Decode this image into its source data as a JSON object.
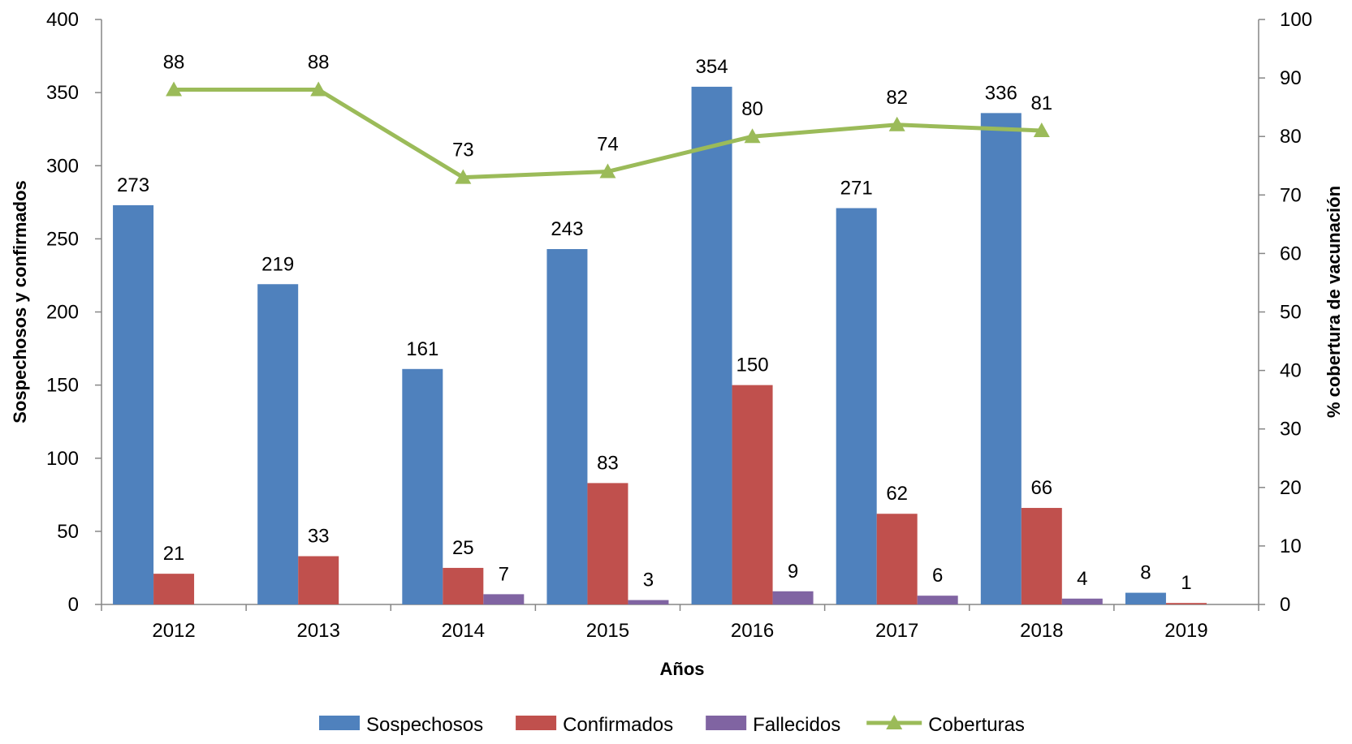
{
  "chart_data": {
    "type": "bar",
    "categories": [
      "2012",
      "2013",
      "2014",
      "2015",
      "2016",
      "2017",
      "2018",
      "2019"
    ],
    "series": [
      {
        "name": "Sospechosos",
        "type": "bar",
        "axis": "left",
        "color": "#4F81BD",
        "values": [
          273,
          219,
          161,
          243,
          354,
          271,
          336,
          8
        ],
        "data_labels": [
          "273",
          "219",
          "161",
          "243",
          "354",
          "271",
          "336",
          "8"
        ]
      },
      {
        "name": "Confirmados",
        "type": "bar",
        "axis": "left",
        "color": "#C0504D",
        "values": [
          21,
          33,
          25,
          83,
          150,
          62,
          66,
          1
        ],
        "data_labels": [
          "21",
          "33",
          "25",
          "83",
          "150",
          "62",
          "66",
          "1"
        ]
      },
      {
        "name": "Fallecidos",
        "type": "bar",
        "axis": "left",
        "color": "#8064A2",
        "values": [
          null,
          null,
          7,
          3,
          9,
          6,
          4,
          null
        ],
        "data_labels": [
          "",
          "",
          "7",
          "3",
          "9",
          "6",
          "4",
          ""
        ]
      },
      {
        "name": "Coberturas",
        "type": "line",
        "axis": "right",
        "color": "#9BBB59",
        "marker": "triangle",
        "values": [
          88,
          88,
          73,
          74,
          80,
          82,
          81,
          null
        ],
        "data_labels": [
          "88",
          "88",
          "73",
          "74",
          "80",
          "82",
          "81",
          ""
        ]
      }
    ],
    "xlabel": "Años",
    "ylabel": "Sospechosos y confirmados",
    "y2label": "% cobertura de vacunación",
    "ylim": [
      0,
      400
    ],
    "y2lim": [
      0,
      100
    ],
    "yticks": [
      "0",
      "50",
      "100",
      "150",
      "200",
      "250",
      "300",
      "350",
      "400"
    ],
    "y2ticks": [
      "0",
      "10",
      "20",
      "30",
      "40",
      "50",
      "60",
      "70",
      "80",
      "90",
      "100"
    ],
    "grid": false,
    "legend_position": "bottom"
  }
}
